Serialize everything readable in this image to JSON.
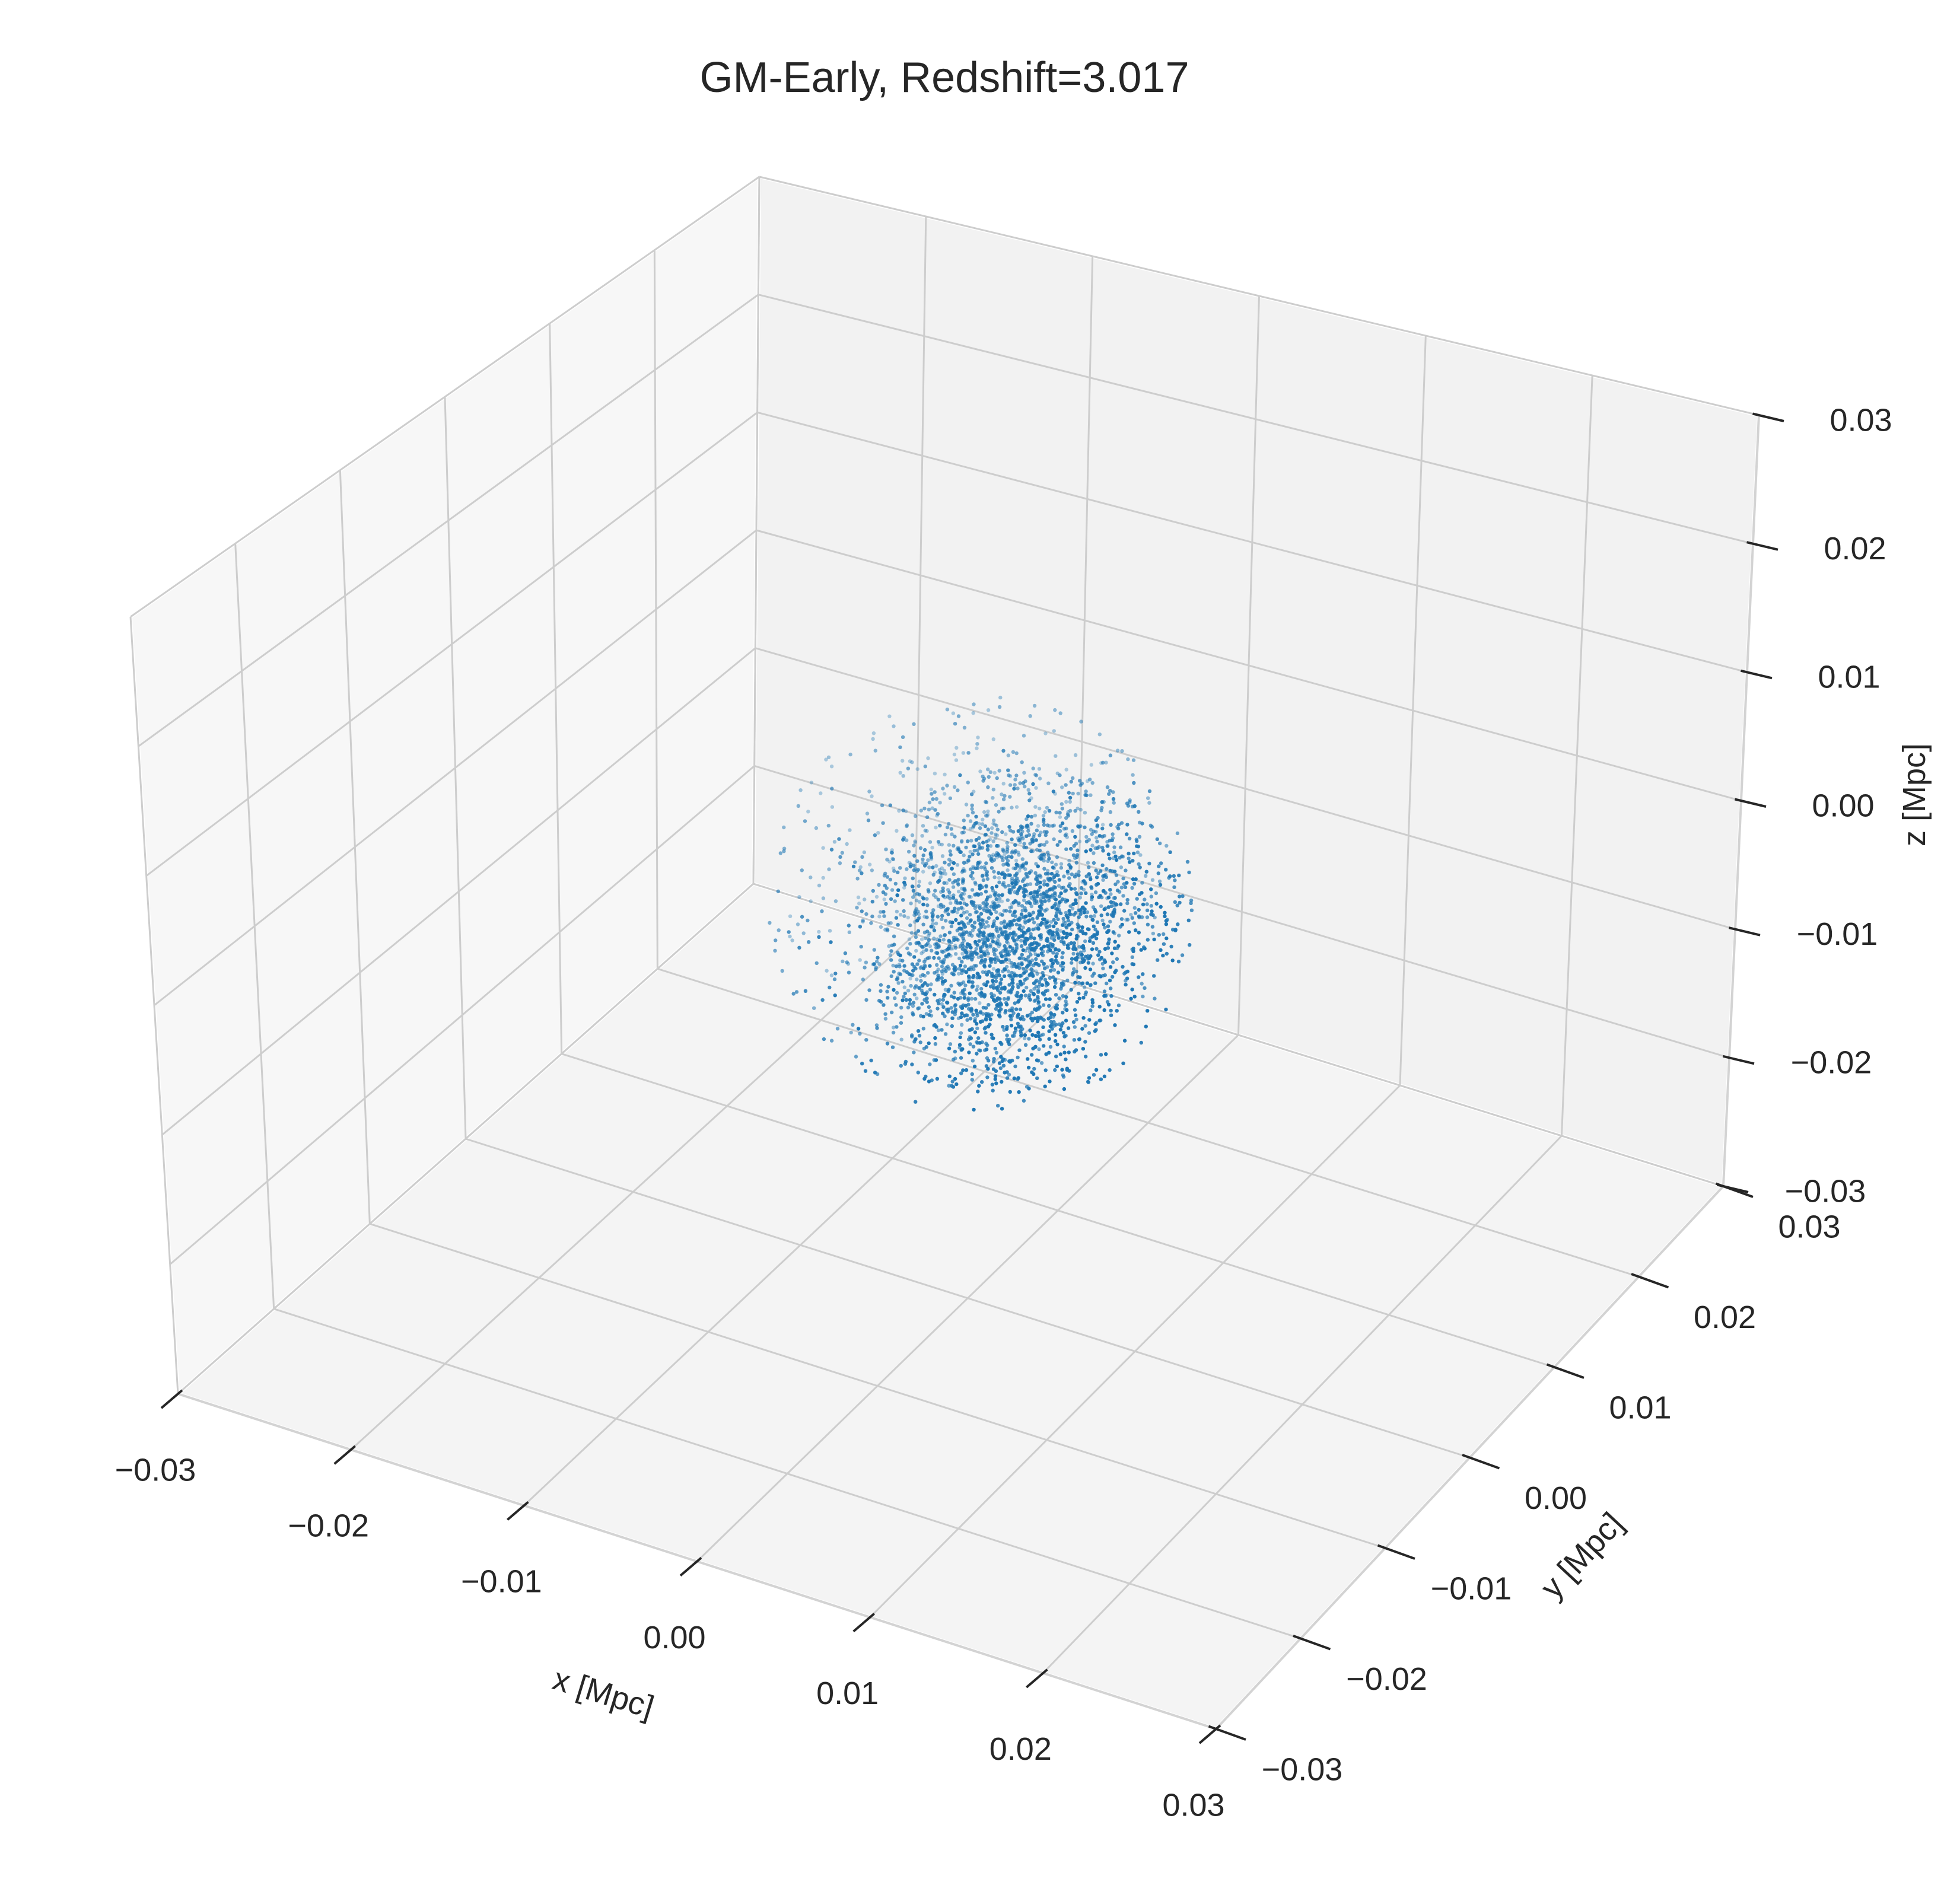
{
  "chart_data": {
    "type": "scatter",
    "title": "GM-Early, Redshift=3.017",
    "xlabel": "x [Mpc]",
    "ylabel": "y [Mpc]",
    "zlabel": "z [Mpc]",
    "xlim": [
      -0.03,
      0.03
    ],
    "ylim": [
      -0.03,
      0.03
    ],
    "zlim": [
      -0.03,
      0.03
    ],
    "xticks": [
      "−0.03",
      "−0.02",
      "−0.01",
      "0.00",
      "0.01",
      "0.02",
      "0.03"
    ],
    "yticks": [
      "−0.03",
      "−0.02",
      "−0.01",
      "0.00",
      "0.01",
      "0.02",
      "0.03"
    ],
    "zticks": [
      "−0.03",
      "−0.02",
      "−0.01",
      "0.00",
      "0.01",
      "0.02",
      "0.03"
    ],
    "grid": true,
    "point_color": "#1f77b4",
    "point_count_estimate": 3000,
    "series": [
      {
        "description": "particle cloud",
        "clusters": [
          {
            "center": [
              0.002,
              0.004,
              0.0
            ],
            "spread": [
              0.0035,
              0.0035,
              0.004
            ],
            "share": 0.45
          },
          {
            "center": [
              0.0,
              0.003,
              -0.007
            ],
            "spread": [
              0.003,
              0.003,
              0.003
            ],
            "share": 0.25
          },
          {
            "center": [
              -0.001,
              0.004,
              -0.0015
            ],
            "spread": [
              0.005,
              0.005,
              0.0065
            ],
            "share": 0.3
          }
        ]
      }
    ]
  }
}
